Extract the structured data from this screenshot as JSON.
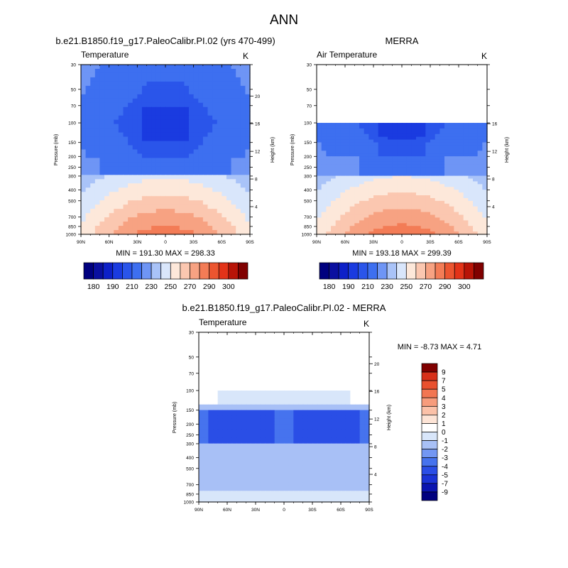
{
  "page_title": "ANN",
  "colors": {
    "temp_palette": [
      "#00007f",
      "#0a0fa0",
      "#0d20c8",
      "#1a3be0",
      "#2a55ea",
      "#3d6ff0",
      "#6e95f5",
      "#a9c3f8",
      "#d9e6fb",
      "#fde8da",
      "#fbc7b0",
      "#f7a282",
      "#f37c56",
      "#ec5530",
      "#e33318",
      "#b81407",
      "#800000"
    ],
    "diff_palette": [
      "#00007f",
      "#0a14b0",
      "#1a33d6",
      "#2a4ee6",
      "#4673ee",
      "#7397f3",
      "#a8c0f6",
      "#d8e6fa",
      "#ffffff",
      "#fde4d6",
      "#fbc1a8",
      "#f79c7c",
      "#f27652",
      "#e9502e",
      "#d8301a",
      "#800000"
    ]
  },
  "chart_data": [
    {
      "type": "heatmap",
      "id": "model",
      "title": "b.e21.B1850.f19_g17.PaleoCalibr.PI.02 (yrs 470-499)",
      "left_label": "Temperature",
      "right_label": "K",
      "ylabel": "Pressure (mb)",
      "y2label": "Height (km)",
      "x_ticks": [
        "90N",
        "60N",
        "30N",
        "0",
        "30S",
        "60S",
        "90S"
      ],
      "x_values": [
        -90,
        -60,
        -30,
        0,
        30,
        60,
        90
      ],
      "y_ticks": [
        "30",
        "50",
        "70",
        "100",
        "150",
        "200",
        "250",
        "300",
        "400",
        "500",
        "700",
        "850",
        "1000"
      ],
      "y_values": [
        30,
        50,
        70,
        100,
        150,
        200,
        250,
        300,
        400,
        500,
        700,
        850,
        1000
      ],
      "y2_ticks": [
        "20",
        "16",
        "12",
        "8",
        "4"
      ],
      "y2_values": [
        20,
        16,
        12,
        8,
        4
      ],
      "ylim": [
        30,
        1000
      ],
      "data_top": 30,
      "stats": "MIN = 191.30   MAX = 298.33",
      "colorbar_labels": [
        "180",
        "190",
        "210",
        "230",
        "250",
        "270",
        "290",
        "300"
      ],
      "colorbar_levels": [
        180,
        185,
        190,
        200,
        210,
        220,
        230,
        240,
        250,
        260,
        270,
        280,
        290,
        295,
        300
      ]
    },
    {
      "type": "heatmap",
      "id": "obs",
      "title": "MERRA",
      "left_label": "Air Temperature",
      "right_label": "K",
      "ylabel": "Pressure (mb)",
      "y2label": "Height (km)",
      "x_ticks": [
        "90N",
        "60N",
        "30N",
        "0",
        "30S",
        "60S",
        "90S"
      ],
      "x_values": [
        -90,
        -60,
        -30,
        0,
        30,
        60,
        90
      ],
      "y_ticks": [
        "30",
        "50",
        "70",
        "100",
        "150",
        "200",
        "250",
        "300",
        "400",
        "500",
        "700",
        "850",
        "1000"
      ],
      "y_values": [
        30,
        50,
        70,
        100,
        150,
        200,
        250,
        300,
        400,
        500,
        700,
        850,
        1000
      ],
      "y2_ticks": [
        "16",
        "12",
        "8",
        "4"
      ],
      "y2_values": [
        16,
        12,
        8,
        4
      ],
      "ylim": [
        30,
        1000
      ],
      "data_top": 100,
      "stats": "MIN = 193.18   MAX = 299.39",
      "colorbar_labels": [
        "180",
        "190",
        "210",
        "230",
        "250",
        "270",
        "290",
        "300"
      ],
      "colorbar_levels": [
        180,
        185,
        190,
        200,
        210,
        220,
        230,
        240,
        250,
        260,
        270,
        280,
        290,
        295,
        300
      ]
    },
    {
      "type": "heatmap",
      "id": "diff",
      "title": "b.e21.B1850.f19_g17.PaleoCalibr.PI.02 - MERRA",
      "left_label": "Temperature",
      "right_label": "K",
      "ylabel": "Pressure (mb)",
      "y2label": "Height (km)",
      "x_ticks": [
        "90N",
        "60N",
        "30N",
        "0",
        "30S",
        "60S",
        "90S"
      ],
      "x_values": [
        -90,
        -60,
        -30,
        0,
        30,
        60,
        90
      ],
      "y_ticks": [
        "30",
        "50",
        "70",
        "100",
        "150",
        "200",
        "250",
        "300",
        "400",
        "500",
        "700",
        "850",
        "1000"
      ],
      "y_values": [
        30,
        50,
        70,
        100,
        150,
        200,
        250,
        300,
        400,
        500,
        700,
        850,
        1000
      ],
      "y2_ticks": [
        "20",
        "16",
        "12",
        "8",
        "4"
      ],
      "y2_values": [
        20,
        16,
        12,
        8,
        4
      ],
      "ylim": [
        30,
        1000
      ],
      "data_top": 100,
      "stats": "MIN =  -8.73   MAX =   4.71",
      "colorbar_labels": [
        "9",
        "7",
        "5",
        "4",
        "3",
        "2",
        "1",
        "0",
        "-1",
        "-2",
        "-3",
        "-4",
        "-5",
        "-7",
        "-9"
      ],
      "colorbar_levels": [
        -9,
        -7,
        -5,
        -4,
        -3,
        -2,
        -1,
        0,
        1,
        2,
        3,
        4,
        5,
        7,
        9
      ]
    }
  ]
}
